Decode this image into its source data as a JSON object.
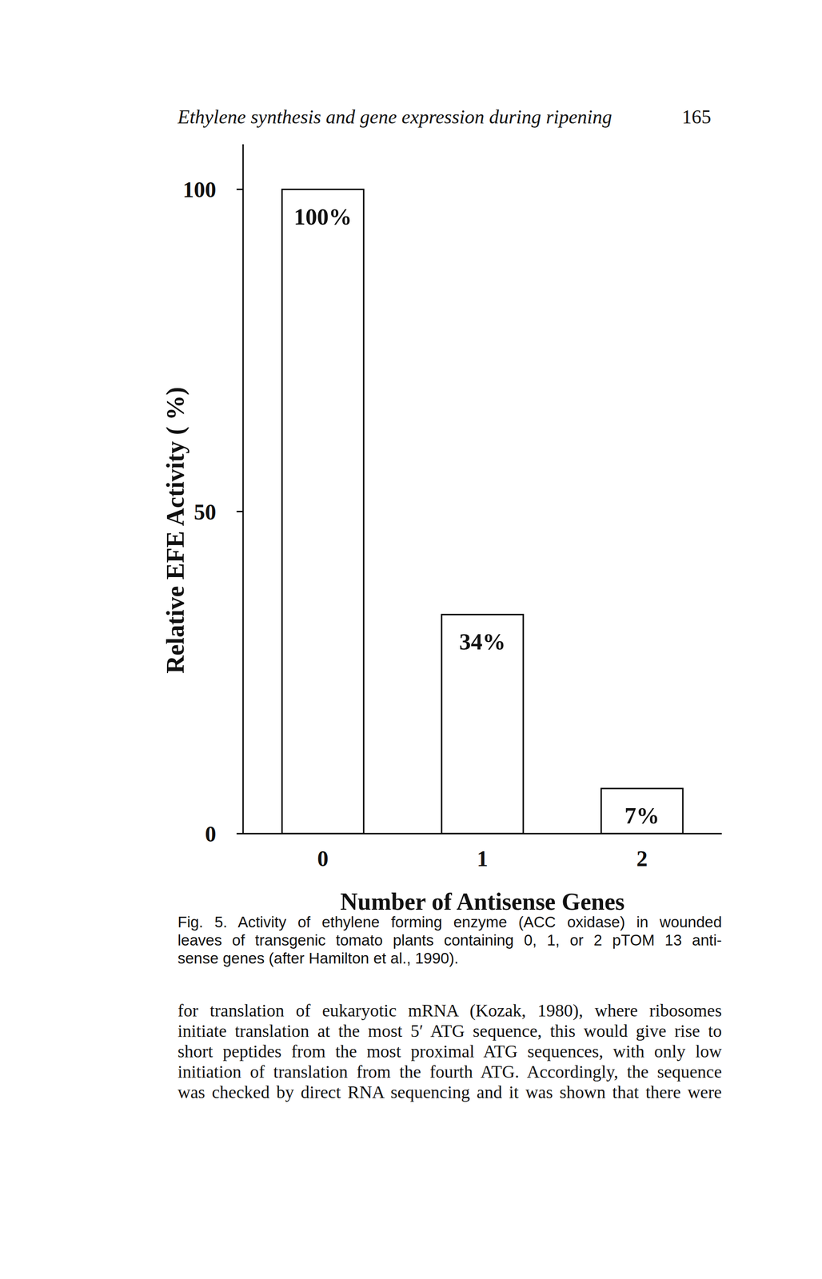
{
  "header": {
    "title": "Ethylene synthesis and gene expression during ripening",
    "page": "165"
  },
  "chart_data": {
    "type": "bar",
    "categories": [
      "0",
      "1",
      "2"
    ],
    "values": [
      100,
      34,
      7
    ],
    "value_labels": [
      "100%",
      "34%",
      "7%"
    ],
    "color": "#ffffff",
    "ylim": [
      0,
      107
    ],
    "yticks": [
      0,
      50,
      100
    ],
    "xlabel": "Number of Antisense Genes",
    "ylabel": "Relative EFE Activity ( %)",
    "data_labels": true,
    "grid": false
  },
  "caption": [
    "Fig. 5. Activity of ethylene forming enzyme (ACC oxidase) in wounded",
    "leaves of transgenic tomato plants containing 0, 1, or 2 pTOM 13 anti-",
    "sense genes (after Hamilton et al., 1990)."
  ],
  "body": [
    "for translation of eukaryotic mRNA (Kozak, 1980), where ribosomes",
    "initiate translation at the most 5′ ATG sequence, this would give rise to",
    "short peptides from the most proximal ATG sequences, with only low",
    "initiation of translation from the fourth ATG. Accordingly, the sequence",
    "was checked by direct RNA sequencing and it was shown that there were"
  ]
}
